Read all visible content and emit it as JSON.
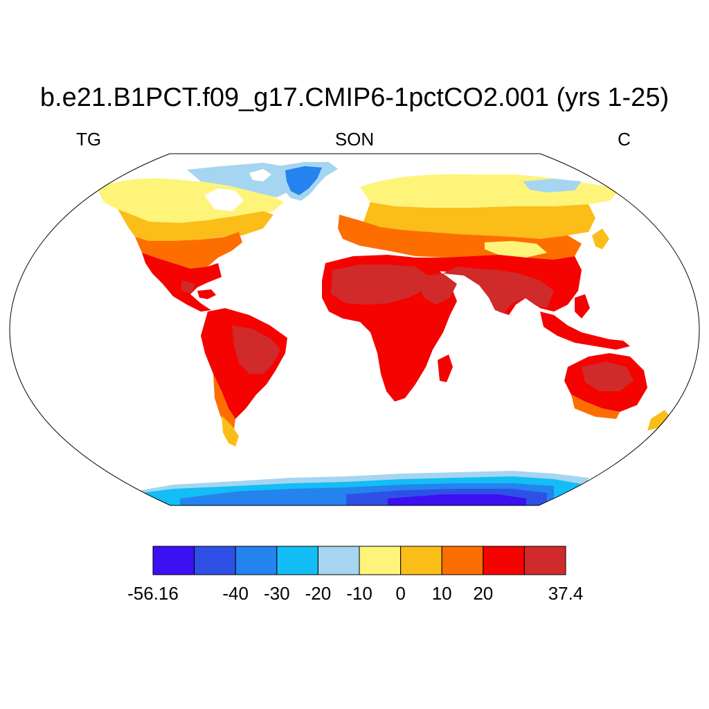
{
  "header": {
    "title": "b.e21.B1PCT.f09_g17.CMIP6-1pctCO2.001 (yrs 1-25)",
    "left_label": "TG",
    "center_label": "SON",
    "right_label": "C"
  },
  "colorbar": {
    "colors": [
      "#3b10f2",
      "#2f50e6",
      "#2483ee",
      "#13bdf5",
      "#a5d5f0",
      "#fff47a",
      "#fbbd18",
      "#fd6e00",
      "#f40300",
      "#d02a2a"
    ],
    "tick_labels": [
      "-56.16",
      "-40",
      "-30",
      "-20",
      "-10",
      "0",
      "10",
      "20",
      "37.4"
    ]
  },
  "palette": {
    "ocean": "#ffffff",
    "outline": "#000000"
  }
}
